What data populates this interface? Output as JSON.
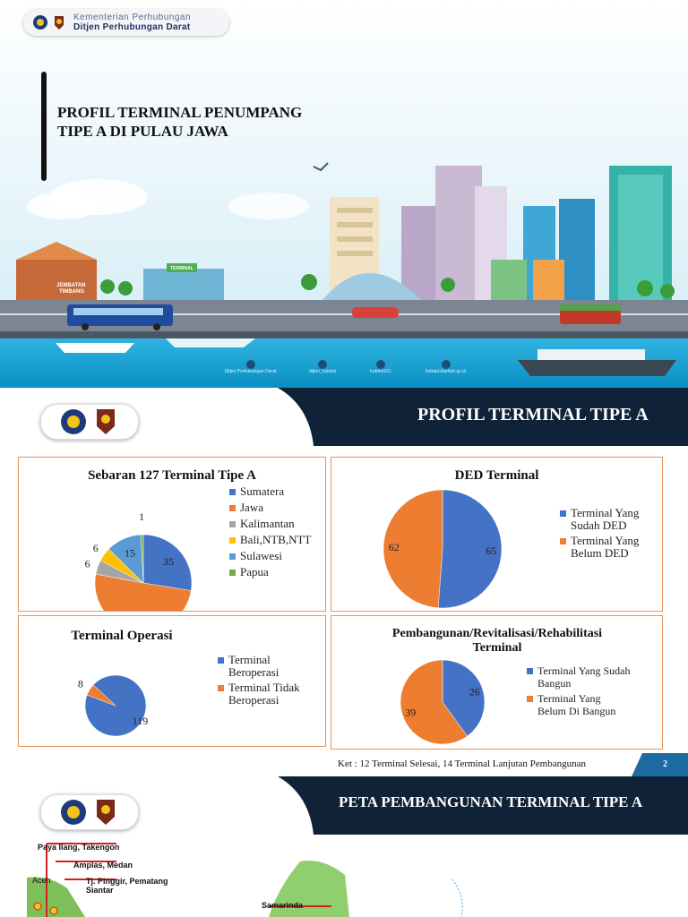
{
  "slide1": {
    "ministry_line1": "Kementerian Perhubungan",
    "ministry_line2": "Ditjen Perhubungan Darat",
    "title_line1": "PROFIL TERMINAL PENUMPANG",
    "title_line2": "TIPE A DI PULAU JAWA",
    "sign_jembatan": "JEMBATAN",
    "sign_timbang": "TIMBANG",
    "sign_terminal": "TERMINAL",
    "social": [
      {
        "icon": "facebook-icon",
        "label": "Ditjen Perhubungan Darat"
      },
      {
        "icon": "instagram-icon",
        "label": "ditjen_hubdat"
      },
      {
        "icon": "twitter-icon",
        "label": "hubdat151"
      },
      {
        "icon": "web-icon",
        "label": "hubdat.dephub.go.id"
      }
    ]
  },
  "slide2": {
    "heading": "PROFIL TERMINAL TIPE A",
    "page_number": "2",
    "note": "Ket : 12 Terminal Selesai, 14 Terminal Lanjutan Pembangunan",
    "colors": {
      "blue": "#4472c4",
      "orange": "#ed7d31",
      "gray": "#a5a5a5",
      "yellow": "#ffc000",
      "lightblue": "#5b9bd5",
      "green": "#70ad47"
    },
    "chart_data": [
      {
        "type": "pie",
        "title": "Sebaran 127 Terminal Tipe A",
        "categories": [
          "Sumatera",
          "Jawa",
          "Kalimantan",
          "Bali,NTB,NTT",
          "Sulawesi",
          "Papua"
        ],
        "values": [
          35,
          64,
          6,
          6,
          15,
          1
        ],
        "legend": "right"
      },
      {
        "type": "pie",
        "title": "DED Terminal",
        "categories": [
          "Terminal Yang Sudah DED",
          "Terminal Yang Belum DED"
        ],
        "values": [
          65,
          62
        ],
        "legend": "right"
      },
      {
        "type": "pie",
        "title": "Terminal Operasi",
        "categories": [
          "Terminal Beroperasi",
          "Terminal Tidak Beroperasi"
        ],
        "values": [
          119,
          8
        ],
        "legend": "right"
      },
      {
        "type": "pie",
        "title": "Pembangunan/Revitalisasi/Rehabilitasi Terminal",
        "categories": [
          "Terminal Yang Sudah Bangun",
          "Terminal Yang Belum Di Bangun"
        ],
        "values": [
          26,
          39
        ],
        "legend": "right"
      }
    ]
  },
  "slide3": {
    "heading": "PETA PEMBANGUNAN TERMINAL TIPE A",
    "labels": [
      "Paya Ilang, Takengon",
      "Amplas, Medan",
      "Tj. Pinggir, Pematang Siantar",
      "Aceh",
      "Samarinda"
    ]
  }
}
